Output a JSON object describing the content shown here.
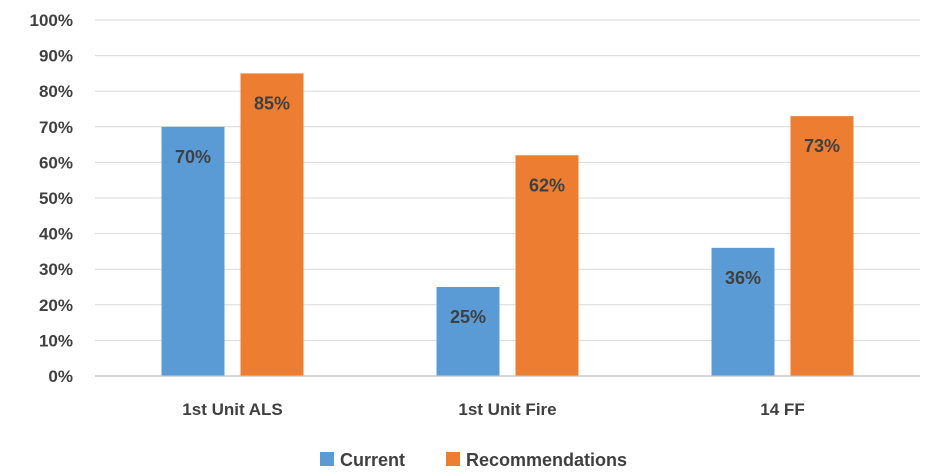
{
  "chart_data": {
    "type": "bar",
    "title": "",
    "xlabel": "",
    "ylabel": "",
    "categories": [
      "1st Unit ALS",
      "1st Unit Fire",
      "14 FF"
    ],
    "series": [
      {
        "name": "Current",
        "values": [
          70,
          25,
          36
        ],
        "labels": [
          "70%",
          "25%",
          "36%"
        ],
        "color": "#5b9bd5"
      },
      {
        "name": "Recommendations",
        "values": [
          85,
          62,
          73
        ],
        "labels": [
          "85%",
          "62%",
          "73%"
        ],
        "color": "#ed7d31"
      }
    ],
    "ylim": [
      0,
      100
    ],
    "yticks": [
      "0%",
      "10%",
      "20%",
      "30%",
      "40%",
      "50%",
      "60%",
      "70%",
      "80%",
      "90%",
      "100%"
    ],
    "grid": true,
    "legend_position": "bottom"
  }
}
